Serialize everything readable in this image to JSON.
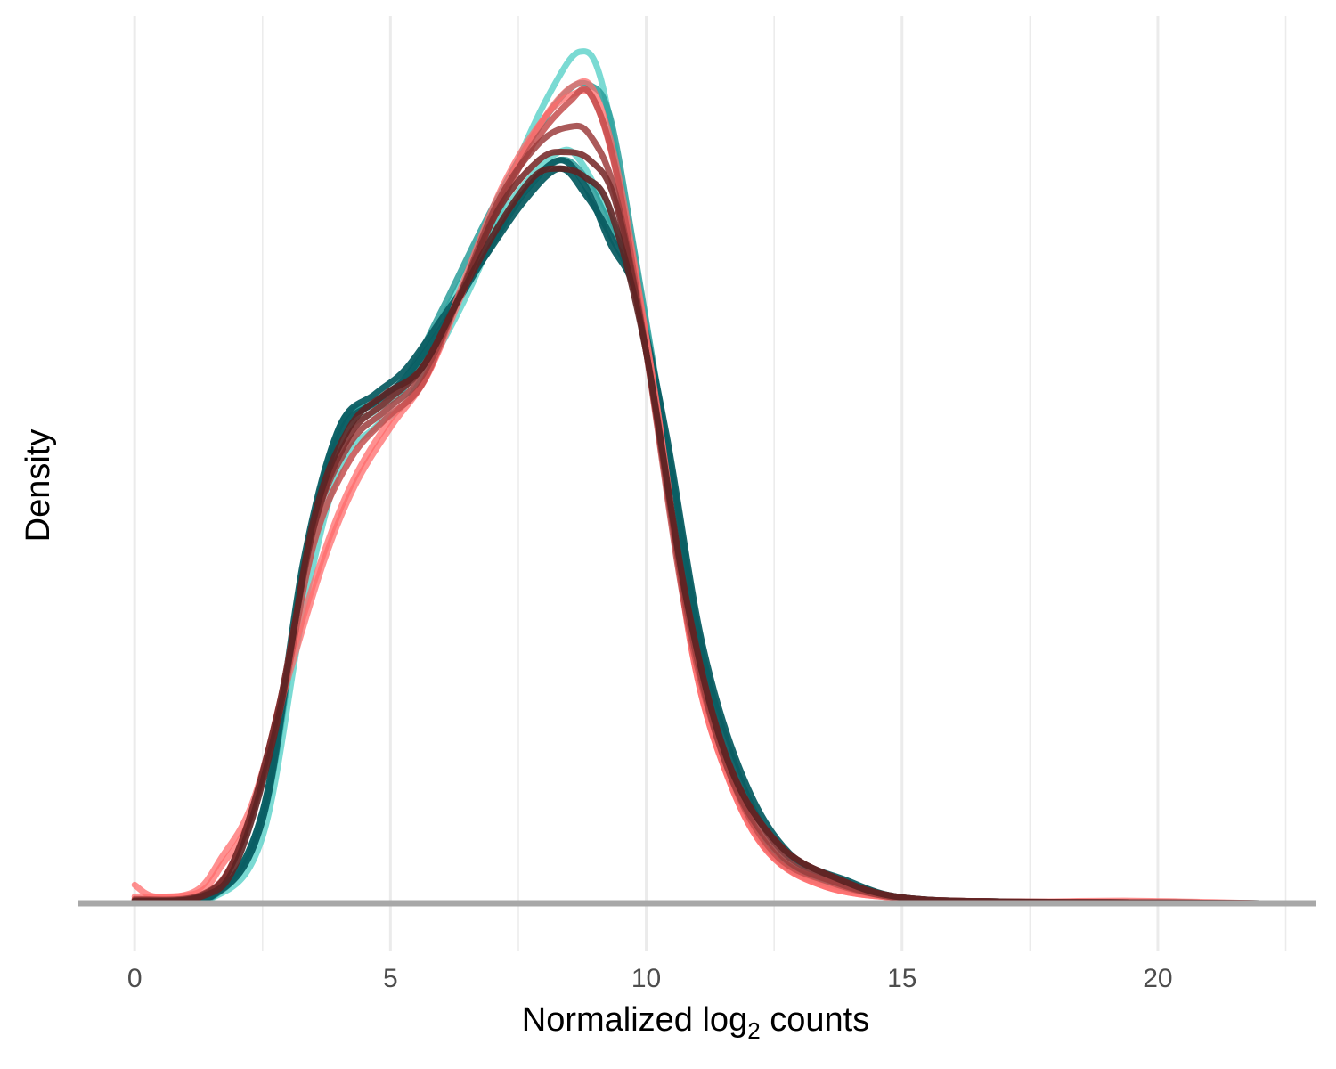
{
  "chart_data": {
    "type": "line",
    "title": "",
    "xlabel": "Normalized log",
    "xlabel_sub": "2",
    "xlabel_suffix": " counts",
    "ylabel": "Density",
    "xlim": [
      -1.1,
      23.1
    ],
    "ylim": [
      0,
      0.105
    ],
    "x_ticks": [
      0,
      5,
      10,
      15,
      20
    ],
    "x_tick_labels": [
      "0",
      "5",
      "10",
      "15",
      "20"
    ],
    "grid": "vertical major and minor",
    "legend": "none",
    "series": [
      {
        "color": "#4ECDC4",
        "alpha": 0.75,
        "points": [
          [
            0,
            0
          ],
          [
            1.5,
            0.0006
          ],
          [
            2.5,
            0.008
          ],
          [
            3.3,
            0.035
          ],
          [
            4,
            0.052
          ],
          [
            4.7,
            0.057
          ],
          [
            5.3,
            0.06
          ],
          [
            6,
            0.067
          ],
          [
            6.8,
            0.077
          ],
          [
            7.5,
            0.089
          ],
          [
            8.2,
            0.098
          ],
          [
            8.7,
            0.102
          ],
          [
            9.1,
            0.099
          ],
          [
            9.6,
            0.083
          ],
          [
            10.3,
            0.058
          ],
          [
            11,
            0.03
          ],
          [
            11.7,
            0.014
          ],
          [
            12.5,
            0.006
          ],
          [
            13.5,
            0.0025
          ],
          [
            15,
            0.0006
          ],
          [
            17,
            0.0002
          ],
          [
            20,
            0.0001
          ],
          [
            22,
            0
          ]
        ]
      },
      {
        "color": "#4ECDC4",
        "alpha": 0.75,
        "points": [
          [
            0,
            0
          ],
          [
            1.5,
            0.0008
          ],
          [
            2.5,
            0.01
          ],
          [
            3.3,
            0.038
          ],
          [
            4,
            0.055
          ],
          [
            4.7,
            0.059
          ],
          [
            5.3,
            0.062
          ],
          [
            6,
            0.07
          ],
          [
            6.8,
            0.079
          ],
          [
            7.6,
            0.086
          ],
          [
            8.3,
            0.09
          ],
          [
            8.7,
            0.089
          ],
          [
            9.3,
            0.082
          ],
          [
            9.8,
            0.074
          ],
          [
            10.4,
            0.054
          ],
          [
            11.1,
            0.028
          ],
          [
            11.8,
            0.013
          ],
          [
            12.6,
            0.005
          ],
          [
            13.6,
            0.0022
          ],
          [
            15,
            0.0006
          ],
          [
            17,
            0.0002
          ],
          [
            20,
            0.0001
          ],
          [
            22,
            0
          ]
        ]
      },
      {
        "color": "#2A9D9A",
        "alpha": 0.85,
        "points": [
          [
            0,
            0
          ],
          [
            1.5,
            0.0008
          ],
          [
            2.5,
            0.011
          ],
          [
            3.3,
            0.04
          ],
          [
            4,
            0.057
          ],
          [
            4.7,
            0.06
          ],
          [
            5.3,
            0.063
          ],
          [
            6,
            0.071
          ],
          [
            6.8,
            0.081
          ],
          [
            7.6,
            0.09
          ],
          [
            8.4,
            0.097
          ],
          [
            8.9,
            0.098
          ],
          [
            9.3,
            0.094
          ],
          [
            9.8,
            0.077
          ],
          [
            10.4,
            0.055
          ],
          [
            11.1,
            0.028
          ],
          [
            11.8,
            0.013
          ],
          [
            12.6,
            0.005
          ],
          [
            13.7,
            0.0025
          ],
          [
            15,
            0.0006
          ],
          [
            17,
            0.0002
          ],
          [
            20,
            0.0001
          ],
          [
            22,
            0
          ]
        ]
      },
      {
        "color": "#2A9D9A",
        "alpha": 0.85,
        "points": [
          [
            0,
            0
          ],
          [
            1.5,
            0.0007
          ],
          [
            2.5,
            0.01
          ],
          [
            3.3,
            0.039
          ],
          [
            4,
            0.056
          ],
          [
            4.7,
            0.06
          ],
          [
            5.3,
            0.062
          ],
          [
            6,
            0.069
          ],
          [
            6.8,
            0.078
          ],
          [
            7.6,
            0.085
          ],
          [
            8.3,
            0.089
          ],
          [
            8.8,
            0.087
          ],
          [
            9.3,
            0.081
          ],
          [
            9.8,
            0.074
          ],
          [
            10.4,
            0.055
          ],
          [
            11.1,
            0.029
          ],
          [
            11.8,
            0.013
          ],
          [
            12.6,
            0.005
          ],
          [
            13.7,
            0.0025
          ],
          [
            15,
            0.0006
          ],
          [
            17,
            0.0002
          ],
          [
            20,
            0.0001
          ],
          [
            22,
            0
          ]
        ]
      },
      {
        "color": "#0B5E63",
        "alpha": 0.95,
        "points": [
          [
            0,
            0
          ],
          [
            1.5,
            0.0009
          ],
          [
            2.5,
            0.011
          ],
          [
            3.3,
            0.041
          ],
          [
            4,
            0.057
          ],
          [
            4.7,
            0.061
          ],
          [
            5.3,
            0.064
          ],
          [
            6,
            0.07
          ],
          [
            6.8,
            0.077
          ],
          [
            7.6,
            0.084
          ],
          [
            8.3,
            0.088
          ],
          [
            8.8,
            0.085
          ],
          [
            9.3,
            0.08
          ],
          [
            9.8,
            0.073
          ],
          [
            10.4,
            0.055
          ],
          [
            11.1,
            0.03
          ],
          [
            11.9,
            0.014
          ],
          [
            12.7,
            0.006
          ],
          [
            13.8,
            0.0028
          ],
          [
            15,
            0.0007
          ],
          [
            17,
            0.0002
          ],
          [
            20,
            0.0001
          ],
          [
            22,
            0
          ]
        ]
      },
      {
        "color": "#0B5E63",
        "alpha": 0.95,
        "points": [
          [
            0,
            0
          ],
          [
            1.5,
            0.0008
          ],
          [
            2.5,
            0.01
          ],
          [
            3.3,
            0.04
          ],
          [
            4,
            0.056
          ],
          [
            4.7,
            0.06
          ],
          [
            5.3,
            0.063
          ],
          [
            6,
            0.069
          ],
          [
            6.8,
            0.077
          ],
          [
            7.6,
            0.085
          ],
          [
            8.3,
            0.089
          ],
          [
            8.8,
            0.086
          ],
          [
            9.3,
            0.079
          ],
          [
            9.8,
            0.073
          ],
          [
            10.4,
            0.056
          ],
          [
            11.1,
            0.031
          ],
          [
            11.9,
            0.015
          ],
          [
            12.8,
            0.006
          ],
          [
            13.9,
            0.0028
          ],
          [
            15,
            0.0007
          ],
          [
            17,
            0.0002
          ],
          [
            20,
            0.0001
          ],
          [
            22,
            0
          ]
        ]
      },
      {
        "color": "#FF6B6B",
        "alpha": 0.75,
        "points": [
          [
            0,
            0.0022
          ],
          [
            0.4,
            0.0008
          ],
          [
            1.2,
            0.0015
          ],
          [
            1.7,
            0.0055
          ],
          [
            2.3,
            0.012
          ],
          [
            3,
            0.027
          ],
          [
            3.7,
            0.041
          ],
          [
            4.3,
            0.05
          ],
          [
            5,
            0.057
          ],
          [
            5.7,
            0.063
          ],
          [
            6.4,
            0.073
          ],
          [
            7.2,
            0.085
          ],
          [
            8,
            0.094
          ],
          [
            8.6,
            0.098
          ],
          [
            9,
            0.097
          ],
          [
            9.5,
            0.086
          ],
          [
            10.2,
            0.06
          ],
          [
            10.9,
            0.03
          ],
          [
            11.6,
            0.015
          ],
          [
            12.4,
            0.006
          ],
          [
            13.5,
            0.002
          ],
          [
            15,
            0.0006
          ],
          [
            17,
            0.0002
          ],
          [
            19.5,
            0.0003
          ],
          [
            22,
            0
          ]
        ]
      },
      {
        "color": "#FF6B6B",
        "alpha": 0.75,
        "points": [
          [
            0,
            0.0008
          ],
          [
            1.2,
            0.0012
          ],
          [
            1.7,
            0.0045
          ],
          [
            2.3,
            0.011
          ],
          [
            3,
            0.028
          ],
          [
            3.7,
            0.042
          ],
          [
            4.3,
            0.051
          ],
          [
            5,
            0.058
          ],
          [
            5.7,
            0.063
          ],
          [
            6.4,
            0.074
          ],
          [
            7.2,
            0.086
          ],
          [
            8,
            0.094
          ],
          [
            8.6,
            0.097
          ],
          [
            9,
            0.096
          ],
          [
            9.5,
            0.085
          ],
          [
            10.2,
            0.06
          ],
          [
            10.9,
            0.03
          ],
          [
            11.6,
            0.015
          ],
          [
            12.4,
            0.006
          ],
          [
            13.5,
            0.002
          ],
          [
            15,
            0.0006
          ],
          [
            17,
            0.0002
          ],
          [
            20,
            0.0001
          ],
          [
            22,
            0
          ]
        ]
      },
      {
        "color": "#C44D4D",
        "alpha": 0.85,
        "points": [
          [
            0,
            0.0005
          ],
          [
            1.3,
            0.001
          ],
          [
            2,
            0.006
          ],
          [
            2.8,
            0.022
          ],
          [
            3.5,
            0.043
          ],
          [
            4.2,
            0.053
          ],
          [
            4.9,
            0.058
          ],
          [
            5.6,
            0.062
          ],
          [
            6.3,
            0.072
          ],
          [
            7,
            0.082
          ],
          [
            7.8,
            0.091
          ],
          [
            8.5,
            0.096
          ],
          [
            8.9,
            0.097
          ],
          [
            9.4,
            0.088
          ],
          [
            10,
            0.066
          ],
          [
            10.8,
            0.034
          ],
          [
            11.6,
            0.016
          ],
          [
            12.5,
            0.006
          ],
          [
            13.6,
            0.0025
          ],
          [
            15,
            0.0006
          ],
          [
            17,
            0.0002
          ],
          [
            20,
            0.0001
          ],
          [
            22,
            0
          ]
        ]
      },
      {
        "color": "#9C3D3D",
        "alpha": 0.85,
        "points": [
          [
            0,
            0.0004
          ],
          [
            1.3,
            0.001
          ],
          [
            2,
            0.006
          ],
          [
            2.8,
            0.023
          ],
          [
            3.5,
            0.045
          ],
          [
            4.2,
            0.055
          ],
          [
            4.9,
            0.059
          ],
          [
            5.6,
            0.063
          ],
          [
            6.3,
            0.072
          ],
          [
            7.1,
            0.084
          ],
          [
            7.9,
            0.091
          ],
          [
            8.5,
            0.093
          ],
          [
            8.9,
            0.092
          ],
          [
            9.4,
            0.085
          ],
          [
            10,
            0.066
          ],
          [
            10.8,
            0.035
          ],
          [
            11.6,
            0.016
          ],
          [
            12.6,
            0.006
          ],
          [
            13.7,
            0.0025
          ],
          [
            15,
            0.0006
          ],
          [
            17,
            0.0002
          ],
          [
            20,
            0.0001
          ],
          [
            22,
            0
          ]
        ]
      },
      {
        "color": "#7A2E2E",
        "alpha": 0.9,
        "points": [
          [
            0,
            0.0003
          ],
          [
            1.3,
            0.0009
          ],
          [
            2,
            0.006
          ],
          [
            2.8,
            0.023
          ],
          [
            3.5,
            0.045
          ],
          [
            4.2,
            0.056
          ],
          [
            4.9,
            0.06
          ],
          [
            5.6,
            0.064
          ],
          [
            6.3,
            0.072
          ],
          [
            7.1,
            0.083
          ],
          [
            7.9,
            0.089
          ],
          [
            8.4,
            0.09
          ],
          [
            8.9,
            0.089
          ],
          [
            9.4,
            0.084
          ],
          [
            10,
            0.066
          ],
          [
            10.8,
            0.036
          ],
          [
            11.6,
            0.017
          ],
          [
            12.6,
            0.007
          ],
          [
            13.8,
            0.0028
          ],
          [
            15,
            0.0007
          ],
          [
            17,
            0.0002
          ],
          [
            20,
            0.0001
          ],
          [
            22,
            0
          ]
        ]
      },
      {
        "color": "#5E2424",
        "alpha": 0.9,
        "points": [
          [
            0,
            0.0003
          ],
          [
            1.3,
            0.0008
          ],
          [
            2,
            0.005
          ],
          [
            2.8,
            0.022
          ],
          [
            3.5,
            0.046
          ],
          [
            4.2,
            0.057
          ],
          [
            4.9,
            0.061
          ],
          [
            5.6,
            0.064
          ],
          [
            6.3,
            0.072
          ],
          [
            7.1,
            0.081
          ],
          [
            7.8,
            0.087
          ],
          [
            8.3,
            0.088
          ],
          [
            8.8,
            0.087
          ],
          [
            9.3,
            0.083
          ],
          [
            10,
            0.066
          ],
          [
            10.8,
            0.036
          ],
          [
            11.6,
            0.017
          ],
          [
            12.6,
            0.007
          ],
          [
            13.8,
            0.0028
          ],
          [
            15,
            0.0007
          ],
          [
            17,
            0.0002
          ],
          [
            20,
            0.0001
          ],
          [
            22,
            0
          ]
        ]
      }
    ]
  }
}
